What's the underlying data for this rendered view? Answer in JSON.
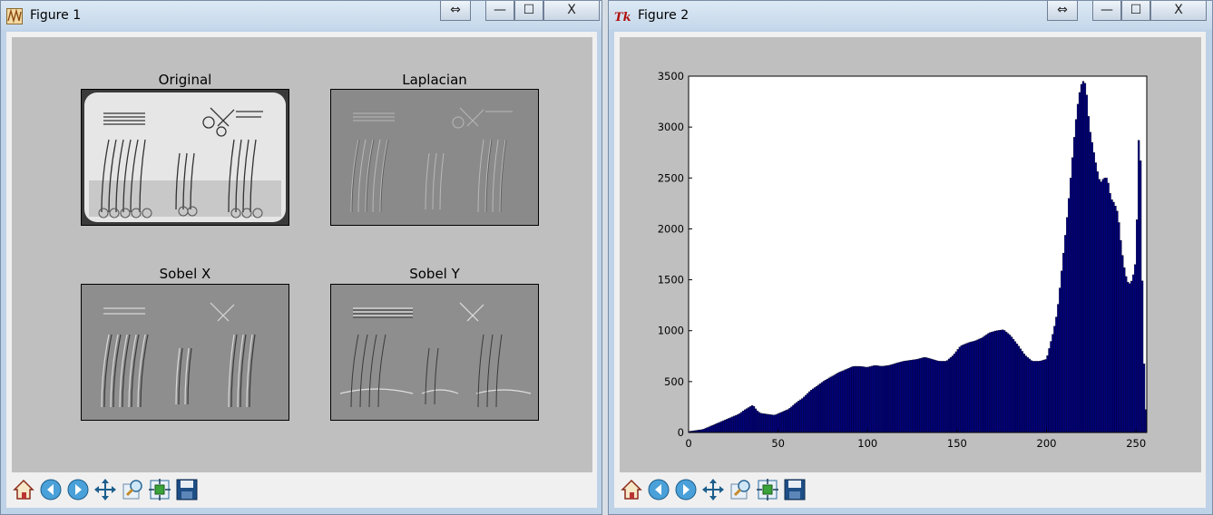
{
  "figure1": {
    "title": "Figure 1",
    "subplots": [
      {
        "title": "Original"
      },
      {
        "title": "Laplacian"
      },
      {
        "title": "Sobel X"
      },
      {
        "title": "Sobel Y"
      }
    ]
  },
  "figure2": {
    "title": "Figure 2"
  },
  "window_buttons": {
    "swap": "⇔",
    "minimize": "—",
    "maximize": "☐",
    "close": "X"
  },
  "toolbar": {
    "icons": [
      "home-icon",
      "back-icon",
      "forward-icon",
      "pan-icon",
      "zoom-icon",
      "subplots-icon",
      "save-icon"
    ]
  },
  "chart_data": {
    "type": "bar",
    "title": "",
    "xlabel": "",
    "ylabel": "",
    "xlim": [
      0,
      256
    ],
    "ylim": [
      0,
      3500
    ],
    "xticks": [
      "0",
      "50",
      "100",
      "150",
      "200",
      "250"
    ],
    "yticks": [
      "0",
      "500",
      "1000",
      "1500",
      "2000",
      "2500",
      "3000",
      "3500"
    ],
    "bar_color": "#00007f",
    "x": [
      0,
      4,
      8,
      12,
      16,
      20,
      24,
      28,
      32,
      36,
      38,
      40,
      44,
      48,
      52,
      56,
      60,
      64,
      68,
      72,
      76,
      80,
      84,
      88,
      92,
      96,
      100,
      104,
      108,
      112,
      116,
      120,
      124,
      128,
      132,
      136,
      140,
      144,
      148,
      152,
      156,
      160,
      164,
      168,
      172,
      176,
      180,
      184,
      188,
      192,
      196,
      200,
      204,
      206,
      208,
      210,
      212,
      214,
      216,
      218,
      220,
      222,
      224,
      226,
      228,
      230,
      232,
      234,
      236,
      238,
      240,
      242,
      244,
      246,
      248,
      250,
      252,
      254,
      256
    ],
    "values": [
      10,
      20,
      30,
      60,
      90,
      120,
      150,
      180,
      230,
      270,
      220,
      190,
      180,
      170,
      200,
      230,
      290,
      340,
      410,
      460,
      510,
      550,
      590,
      620,
      650,
      650,
      640,
      660,
      650,
      660,
      680,
      700,
      710,
      720,
      740,
      720,
      700,
      700,
      760,
      850,
      880,
      900,
      930,
      980,
      1000,
      1010,
      950,
      860,
      760,
      700,
      700,
      720,
      1000,
      1180,
      1500,
      1850,
      2200,
      2600,
      3000,
      3300,
      3460,
      3420,
      3000,
      2800,
      2600,
      2450,
      2500,
      2500,
      2300,
      2250,
      2150,
      1800,
      1560,
      1450,
      1500,
      1700,
      3260,
      900,
      0
    ]
  }
}
